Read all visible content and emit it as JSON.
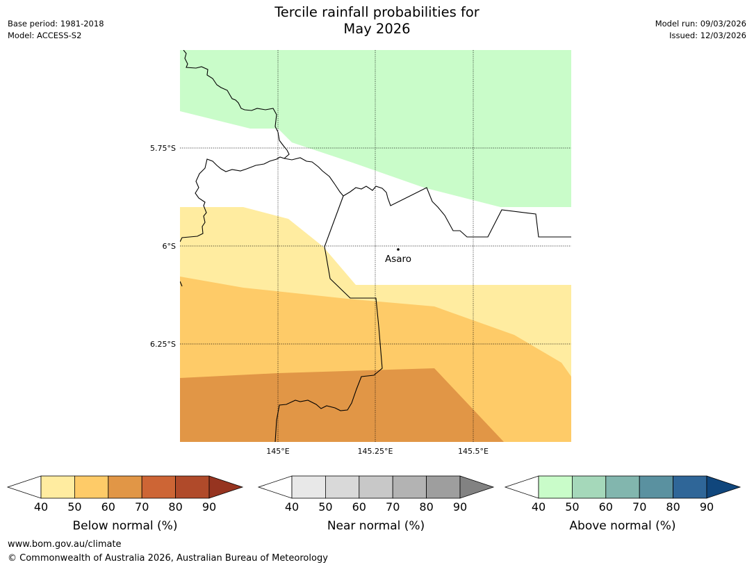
{
  "title": {
    "line1": "Tercile rainfall probabilities for",
    "line2": "May 2026"
  },
  "meta_left": {
    "base_period": "Base period: 1981-2018",
    "model": "Model: ACCESS-S2"
  },
  "meta_right": {
    "model_run": "Model run: 09/03/2026",
    "issued": "Issued: 12/03/2026"
  },
  "map": {
    "lat_labels": [
      "5.75°S",
      "6°S",
      "6.25°S"
    ],
    "lon_labels": [
      "145°E",
      "145.25°E",
      "145.5°E"
    ],
    "place": {
      "name": "Asaro"
    },
    "fill_colors": {
      "above_40": "#c9fcc9",
      "below_40": "#ffeca0",
      "below_50": "#fecb68",
      "below_60": "#e19646"
    }
  },
  "colorbars": [
    {
      "name": "below",
      "label": "Below normal (%)",
      "ticks": [
        "40",
        "50",
        "60",
        "70",
        "80",
        "90"
      ],
      "colors": [
        "#ffffff",
        "#ffeca0",
        "#fecb68",
        "#e19646",
        "#cd6535",
        "#b04a2a",
        "#963420"
      ]
    },
    {
      "name": "near",
      "label": "Near normal (%)",
      "ticks": [
        "40",
        "50",
        "60",
        "70",
        "80",
        "90"
      ],
      "colors": [
        "#ffffff",
        "#e8e8e8",
        "#d9d9d9",
        "#c8c8c8",
        "#b3b3b3",
        "#9e9e9e",
        "#828282"
      ]
    },
    {
      "name": "above",
      "label": "Above normal (%)",
      "ticks": [
        "40",
        "50",
        "60",
        "70",
        "80",
        "90"
      ],
      "colors": [
        "#ffffff",
        "#c9fcc9",
        "#a5d8ba",
        "#82b6ae",
        "#5a91a0",
        "#2f6698",
        "#10467c"
      ]
    }
  ],
  "footer": {
    "url": "www.bom.gov.au/climate",
    "copyright": "© Commonwealth of Australia 2026, Australian Bureau of Meteorology"
  }
}
